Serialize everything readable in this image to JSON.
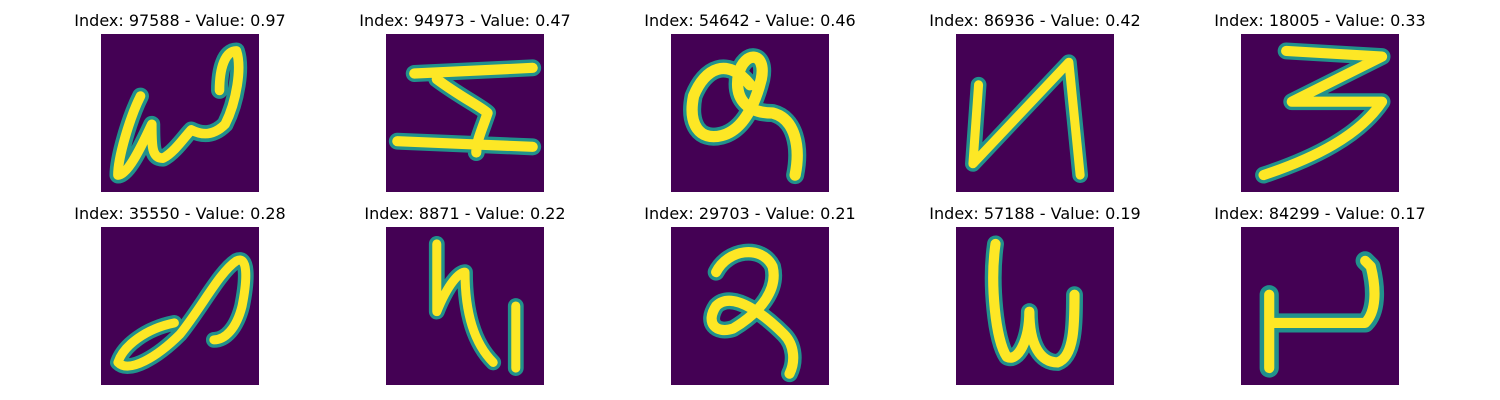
{
  "colors": {
    "background": "#440154",
    "stroke_core": "#fde725",
    "stroke_edge": "#21918c"
  },
  "samples": [
    {
      "title": "Index: 97588 - Value: 0.97"
    },
    {
      "title": "Index: 94973 - Value: 0.47"
    },
    {
      "title": "Index: 54642 - Value: 0.46"
    },
    {
      "title": "Index: 86936 - Value: 0.42"
    },
    {
      "title": "Index: 18005 - Value: 0.33"
    },
    {
      "title": "Index: 35550 - Value: 0.28"
    },
    {
      "title": "Index: 8871 - Value: 0.22"
    },
    {
      "title": "Index: 29703 - Value: 0.21"
    },
    {
      "title": "Index: 57188 - Value: 0.19"
    },
    {
      "title": "Index: 84299 - Value: 0.17"
    }
  ]
}
